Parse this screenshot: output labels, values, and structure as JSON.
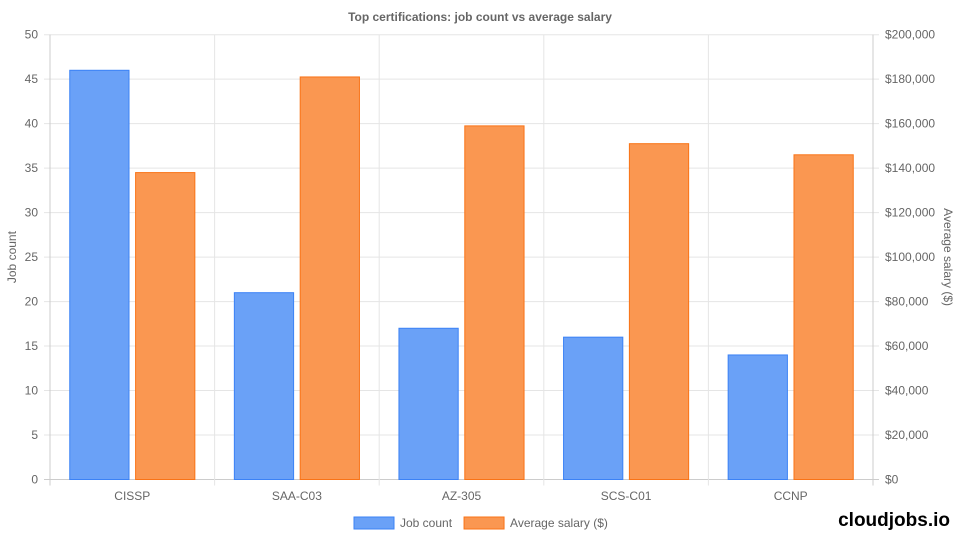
{
  "chart_data": {
    "type": "bar",
    "title": "Top certifications: job count vs average salary",
    "categories": [
      "CISSP",
      "SAA-C03",
      "AZ-305",
      "SCS-C01",
      "CCNP"
    ],
    "series": [
      {
        "name": "Job count",
        "axis": "left",
        "values": [
          46,
          21,
          17,
          16,
          14
        ],
        "color": "#6aa1f7",
        "border": "#3b82f6"
      },
      {
        "name": "Average salary ($)",
        "axis": "right",
        "values": [
          138000,
          181000,
          159000,
          151000,
          146000
        ],
        "color": "#fa9751",
        "border": "#f97316"
      }
    ],
    "ylabel": "Job count",
    "y2label": "Average salary ($)",
    "ylim": [
      0,
      50
    ],
    "y2lim": [
      0,
      200000
    ],
    "yticks": [
      "0",
      "5",
      "10",
      "15",
      "20",
      "25",
      "30",
      "35",
      "40",
      "45",
      "50"
    ],
    "y2ticks": [
      "$0",
      "$20,000",
      "$40,000",
      "$60,000",
      "$80,000",
      "$100,000",
      "$120,000",
      "$140,000",
      "$160,000",
      "$180,000",
      "$200,000"
    ],
    "grid": true,
    "legend": "bottom"
  },
  "brand": "cloudjobs.io"
}
